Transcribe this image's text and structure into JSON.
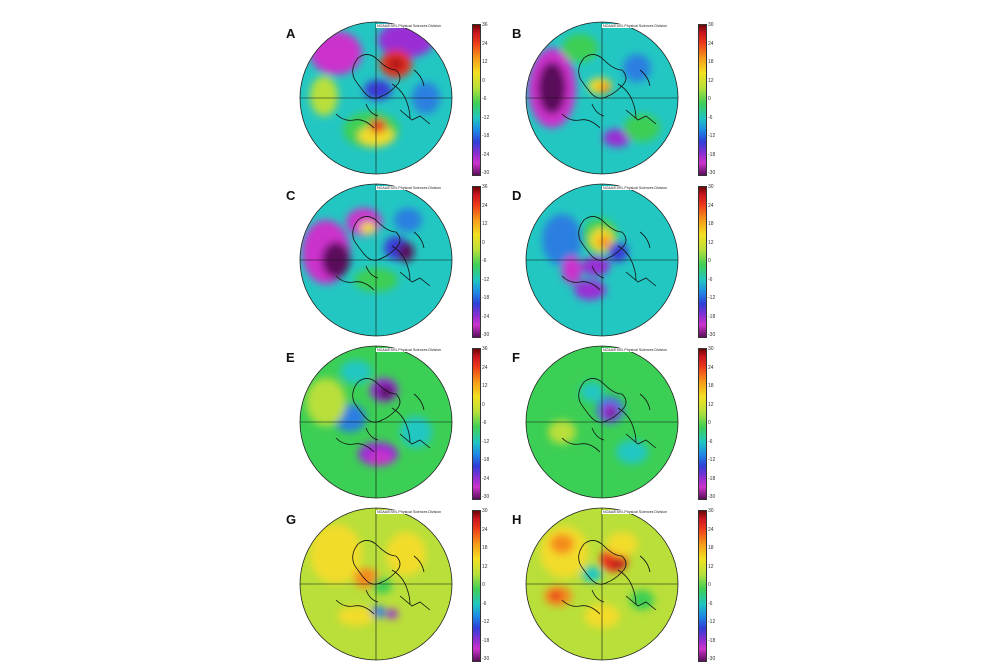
{
  "credit_text": "NOAA/ESRL Physical Sciences Division",
  "colors": {
    "deep_red": "#b0121a",
    "red": "#e8321a",
    "orange": "#f58b1f",
    "yellow": "#f2dc2a",
    "yellow_green": "#b9df3a",
    "green": "#3ccf55",
    "cyan": "#23c7c2",
    "blue": "#2a7fe0",
    "indigo": "#3b3bd6",
    "purple": "#9a2fd4",
    "magenta": "#cc33cc",
    "dark_magenta": "#5a0f5a"
  },
  "panels": [
    {
      "label": "A",
      "ticks": [
        "36",
        "24",
        "12",
        "0",
        "-6",
        "-12",
        "-18",
        "-24",
        "-30"
      ]
    },
    {
      "label": "B",
      "ticks": [
        "30",
        "24",
        "18",
        "12",
        "0",
        "-6",
        "-12",
        "-18",
        "-30"
      ]
    },
    {
      "label": "C",
      "ticks": [
        "36",
        "24",
        "12",
        "0",
        "-6",
        "-12",
        "-18",
        "-24",
        "-30"
      ]
    },
    {
      "label": "D",
      "ticks": [
        "30",
        "24",
        "18",
        "12",
        "0",
        "-6",
        "-12",
        "-18",
        "-30"
      ]
    },
    {
      "label": "E",
      "ticks": [
        "36",
        "24",
        "12",
        "0",
        "-6",
        "-12",
        "-18",
        "-24",
        "-30"
      ]
    },
    {
      "label": "F",
      "ticks": [
        "30",
        "24",
        "18",
        "12",
        "0",
        "-6",
        "-12",
        "-18",
        "-30"
      ]
    },
    {
      "label": "G",
      "ticks": [
        "30",
        "24",
        "18",
        "12",
        "0",
        "-6",
        "-12",
        "-18",
        "-30"
      ]
    },
    {
      "label": "H",
      "ticks": [
        "30",
        "24",
        "18",
        "12",
        "0",
        "-6",
        "-12",
        "-18",
        "-30"
      ]
    }
  ]
}
